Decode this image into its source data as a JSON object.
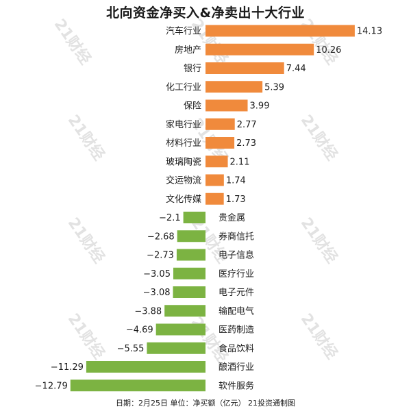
{
  "title": "北向资金净买入&净卖出十大行业",
  "footer": "日期：2月25日 单位：净买额（亿元） 21投资通制图",
  "watermark": "21财经",
  "colors": {
    "positive": "#f08a3c",
    "negative": "#7cb342"
  },
  "chart_data": {
    "type": "bar",
    "orientation": "horizontal",
    "title": "北向资金净买入&净卖出十大行业",
    "unit": "亿元",
    "categories": [
      "汽车行业",
      "房地产",
      "银行",
      "化工行业",
      "保险",
      "家电行业",
      "材料行业",
      "玻璃陶瓷",
      "交运物流",
      "文化传媒",
      "贵金属",
      "券商信托",
      "电子信息",
      "医疗行业",
      "电子元件",
      "输配电气",
      "医药制造",
      "食品饮料",
      "酿酒行业",
      "软件服务"
    ],
    "values": [
      14.13,
      10.26,
      7.44,
      5.39,
      3.99,
      2.77,
      2.73,
      2.11,
      1.74,
      1.73,
      -2.1,
      -2.68,
      -2.73,
      -3.05,
      -3.08,
      -3.88,
      -4.69,
      -5.55,
      -11.29,
      -12.79
    ],
    "value_labels": [
      "14.13",
      "10.26",
      "7.44",
      "5.39",
      "3.99",
      "2.77",
      "2.73",
      "2.11",
      "1.74",
      "1.73",
      "−2.1",
      "−2.68",
      "−2.73",
      "−3.05",
      "−3.08",
      "−3.88",
      "−4.69",
      "−5.55",
      "−11.29",
      "−12.79"
    ],
    "grid": false,
    "legend": "none"
  }
}
